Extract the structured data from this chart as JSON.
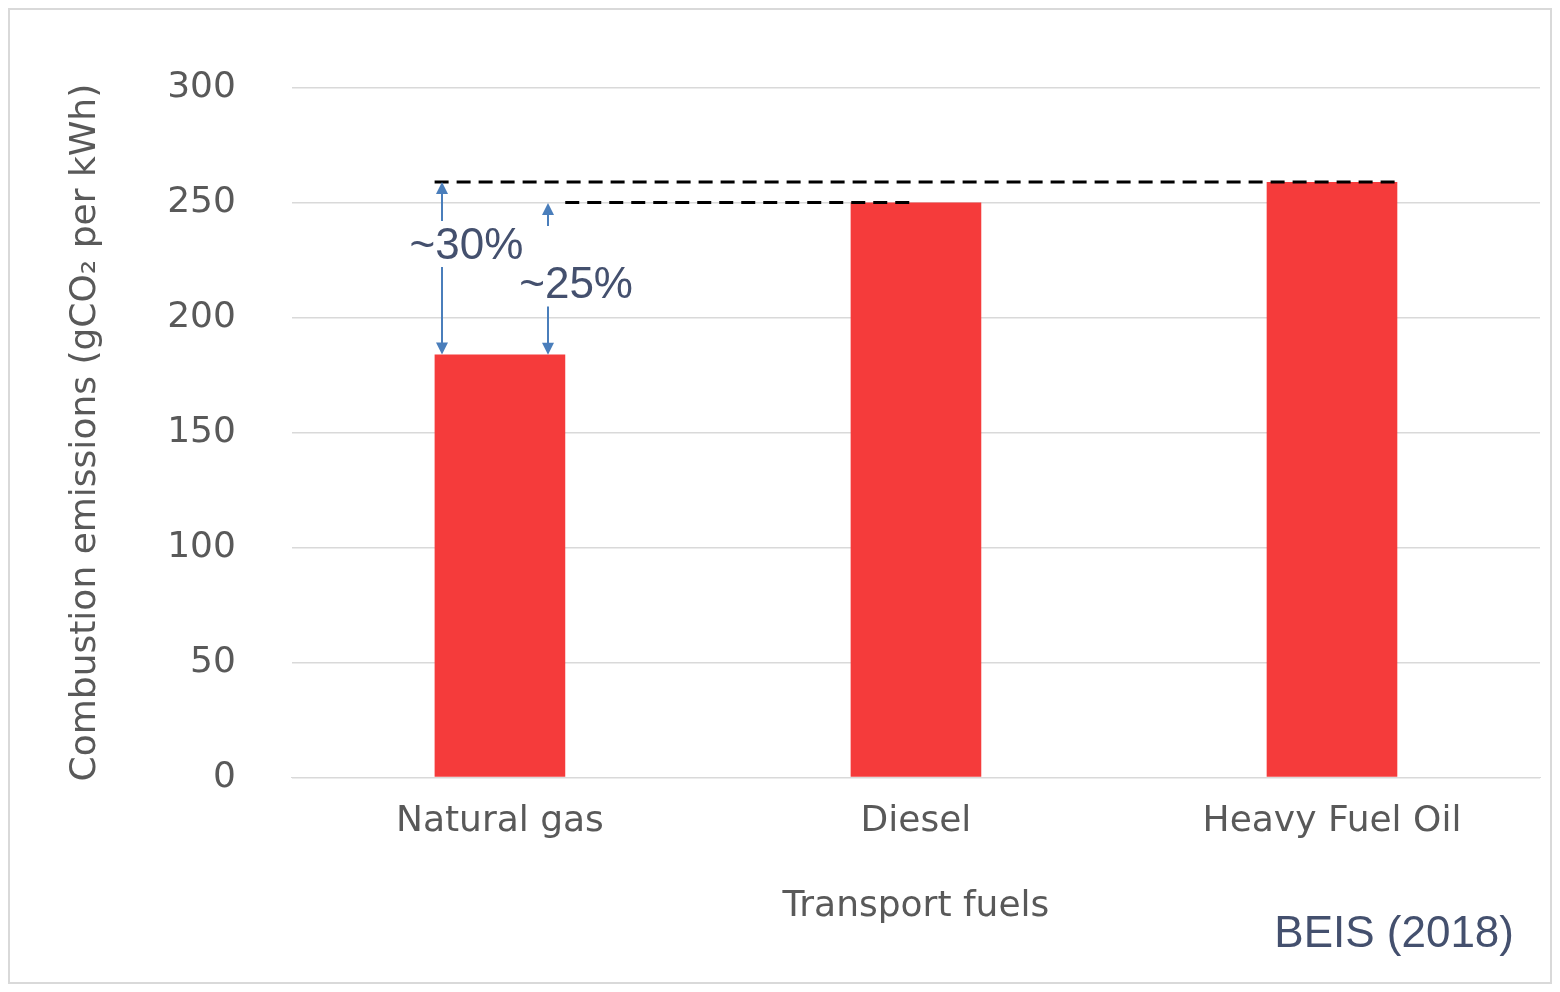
{
  "chart_data": {
    "type": "bar",
    "categories": [
      "Natural gas",
      "Diesel",
      "Heavy Fuel Oil"
    ],
    "values": [
      184,
      250,
      259
    ],
    "color": "#f53b3b",
    "xlabel": "Transport fuels",
    "ylabel": "Combustion emissions (gCO₂ per kWh)",
    "ylim": [
      0,
      300
    ],
    "yticks": [
      0,
      50,
      100,
      150,
      200,
      250,
      300
    ],
    "grid": "y",
    "legend": false,
    "ref_lines": [
      {
        "axis": "y",
        "value": 259,
        "color": "#000000",
        "line_style": "dashed"
      },
      {
        "axis": "y",
        "value": 250,
        "color": "#000000",
        "line_style": "dashed"
      }
    ],
    "annotations": [
      "~30%",
      "~25%",
      "BEIS (2018)"
    ]
  }
}
